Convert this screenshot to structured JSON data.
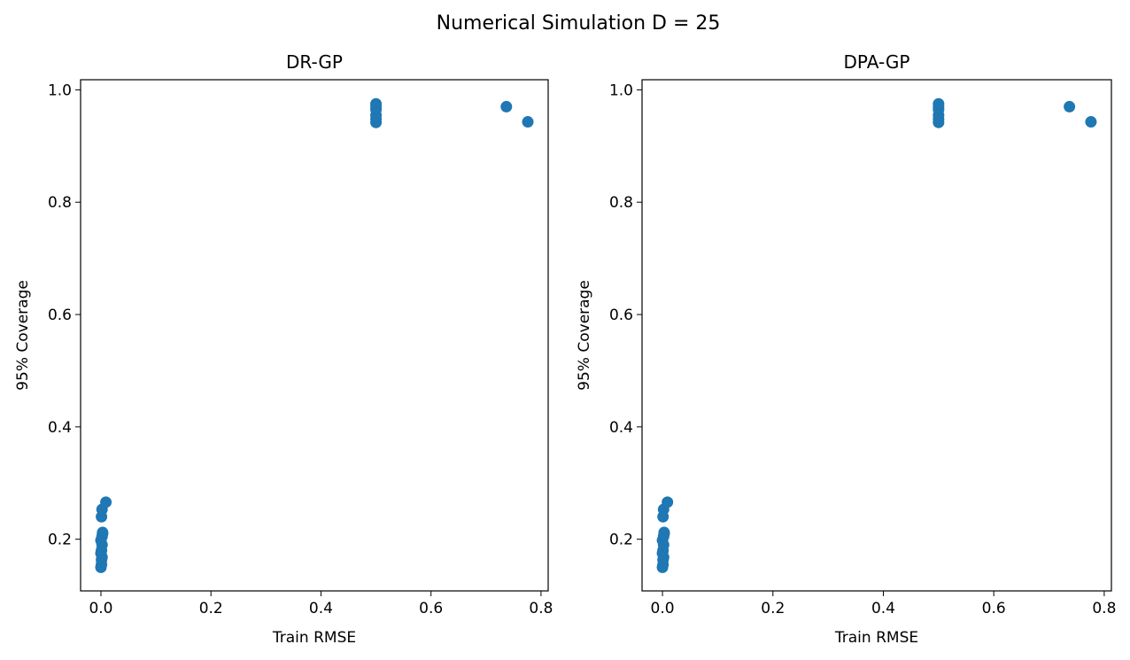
{
  "figure": {
    "suptitle": "Numerical Simulation D = 25"
  },
  "colors": {
    "marker": "#1f77b4"
  },
  "chart_data": [
    {
      "type": "scatter",
      "title": "DR-GP",
      "xlabel": "Train RMSE",
      "ylabel": "95% Coverage",
      "xlim": [
        -0.037,
        0.813
      ],
      "ylim": [
        0.108,
        1.018
      ],
      "xticks": [
        0.0,
        0.2,
        0.4,
        0.6,
        0.8
      ],
      "xtick_labels": [
        "0.0",
        "0.2",
        "0.4",
        "0.6",
        "0.8"
      ],
      "yticks": [
        0.2,
        0.4,
        0.6,
        0.8,
        1.0
      ],
      "ytick_labels": [
        "0.2",
        "0.4",
        "0.6",
        "0.8",
        "1.0"
      ],
      "grid": false,
      "series": [
        {
          "x": [
            0.0,
            0.001,
            0.001,
            0.002,
            0.0,
            0.001,
            0.002,
            0.0,
            0.002,
            0.003,
            0.003,
            0.001,
            0.002,
            0.009,
            0.5,
            0.5,
            0.5,
            0.5,
            0.5,
            0.5,
            0.737,
            0.776
          ],
          "y": [
            0.15,
            0.155,
            0.163,
            0.168,
            0.175,
            0.18,
            0.19,
            0.198,
            0.205,
            0.21,
            0.212,
            0.24,
            0.253,
            0.266,
            0.942,
            0.948,
            0.955,
            0.965,
            0.97,
            0.975,
            0.97,
            0.943
          ]
        }
      ]
    },
    {
      "type": "scatter",
      "title": "DPA-GP",
      "xlabel": "Train RMSE",
      "ylabel": "95% Coverage",
      "xlim": [
        -0.037,
        0.813
      ],
      "ylim": [
        0.108,
        1.018
      ],
      "xticks": [
        0.0,
        0.2,
        0.4,
        0.6,
        0.8
      ],
      "xtick_labels": [
        "0.0",
        "0.2",
        "0.4",
        "0.6",
        "0.8"
      ],
      "yticks": [
        0.2,
        0.4,
        0.6,
        0.8,
        1.0
      ],
      "ytick_labels": [
        "0.2",
        "0.4",
        "0.6",
        "0.8",
        "1.0"
      ],
      "grid": false,
      "series": [
        {
          "x": [
            0.0,
            0.001,
            0.001,
            0.002,
            0.0,
            0.001,
            0.002,
            0.0,
            0.002,
            0.003,
            0.003,
            0.001,
            0.002,
            0.009,
            0.5,
            0.5,
            0.5,
            0.5,
            0.5,
            0.5,
            0.737,
            0.776
          ],
          "y": [
            0.15,
            0.155,
            0.163,
            0.168,
            0.175,
            0.18,
            0.19,
            0.198,
            0.205,
            0.21,
            0.212,
            0.24,
            0.253,
            0.266,
            0.942,
            0.948,
            0.955,
            0.965,
            0.97,
            0.975,
            0.97,
            0.943
          ]
        }
      ]
    }
  ]
}
